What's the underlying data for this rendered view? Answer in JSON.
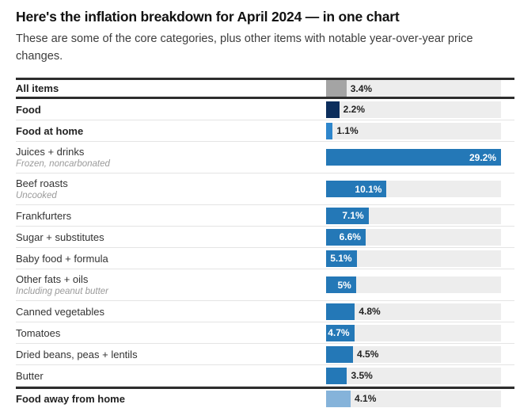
{
  "header": {
    "title": "Here's the inflation breakdown for April 2024 — in one chart",
    "subtitle": "These are some of the core categories, plus other items with notable year-over-year price changes."
  },
  "colors": {
    "gray": "#a4a4a4",
    "navy": "#0c2e5d",
    "mediumBlue": "#2e86cc",
    "blue": "#2478b7",
    "lightBlue": "#85b3da",
    "track": "#ededed",
    "thick_rule": "#2d2d2d",
    "thin_rule": "#e4e4e4"
  },
  "chart_data": {
    "type": "bar",
    "orientation": "horizontal",
    "unit": "percent year-over-year",
    "xlim": [
      0,
      29.2
    ],
    "grid": false,
    "legend": false,
    "title": "Here's the inflation breakdown for April 2024 — in one chart",
    "rows": [
      {
        "label": "All items",
        "sublabel": "",
        "value": 3.4,
        "display": "3.4%",
        "color": "gray",
        "bold": true,
        "label_inside": false,
        "rule_top": true,
        "rule_bottom": true
      },
      {
        "label": "Food",
        "sublabel": "",
        "value": 2.2,
        "display": "2.2%",
        "color": "navy",
        "bold": true,
        "label_inside": false
      },
      {
        "label": "Food at home",
        "sublabel": "",
        "value": 1.1,
        "display": "1.1%",
        "color": "mediumBlue",
        "bold": true,
        "label_inside": false
      },
      {
        "label": "Juices + drinks",
        "sublabel": "Frozen, noncarbonated",
        "value": 29.2,
        "display": "29.2%",
        "color": "blue",
        "bold": false,
        "label_inside": true
      },
      {
        "label": "Beef roasts",
        "sublabel": "Uncooked",
        "value": 10.1,
        "display": "10.1%",
        "color": "blue",
        "bold": false,
        "label_inside": true
      },
      {
        "label": "Frankfurters",
        "sublabel": "",
        "value": 7.1,
        "display": "7.1%",
        "color": "blue",
        "bold": false,
        "label_inside": true
      },
      {
        "label": "Sugar + substitutes",
        "sublabel": "",
        "value": 6.6,
        "display": "6.6%",
        "color": "blue",
        "bold": false,
        "label_inside": true
      },
      {
        "label": "Baby food + formula",
        "sublabel": "",
        "value": 5.1,
        "display": "5.1%",
        "color": "blue",
        "bold": false,
        "label_inside": true
      },
      {
        "label": "Other fats + oils",
        "sublabel": "Including peanut butter",
        "value": 5.0,
        "display": "5%",
        "color": "blue",
        "bold": false,
        "label_inside": true
      },
      {
        "label": "Canned vegetables",
        "sublabel": "",
        "value": 4.8,
        "display": "4.8%",
        "color": "blue",
        "bold": false,
        "label_inside": false
      },
      {
        "label": "Tomatoes",
        "sublabel": "",
        "value": 4.7,
        "display": "4.7%",
        "color": "blue",
        "bold": false,
        "label_inside": true
      },
      {
        "label": "Dried beans, peas + lentils",
        "sublabel": "",
        "value": 4.5,
        "display": "4.5%",
        "color": "blue",
        "bold": false,
        "label_inside": false
      },
      {
        "label": "Butter",
        "sublabel": "",
        "value": 3.5,
        "display": "3.5%",
        "color": "blue",
        "bold": false,
        "label_inside": false
      },
      {
        "label": "Food away from home",
        "sublabel": "",
        "value": 4.1,
        "display": "4.1%",
        "color": "lightBlue",
        "bold": true,
        "label_inside": false,
        "rule_top": true,
        "partial": true
      }
    ]
  }
}
